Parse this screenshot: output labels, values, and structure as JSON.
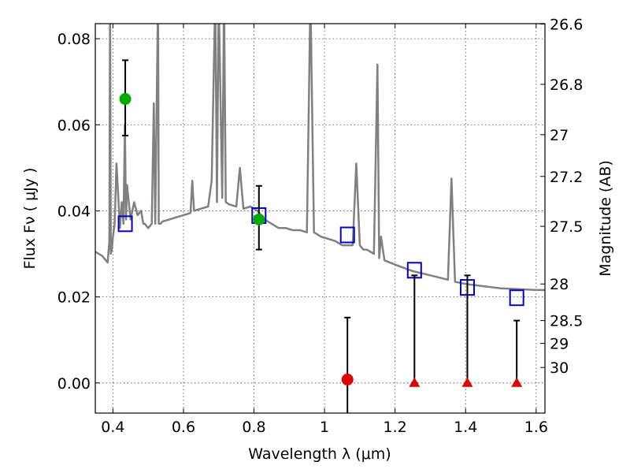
{
  "chart_data": {
    "type": "scatter",
    "title": "",
    "xlabel": "Wavelength  λ (μm)",
    "ylabel": "Flux  Fν  ( μJy )",
    "y2label": "Magnitude (AB)",
    "xlim": [
      0.35,
      1.625
    ],
    "ylim": [
      -0.007,
      0.0835
    ],
    "x_ticks": [
      0.4,
      0.6,
      0.8,
      1.0,
      1.2,
      1.4,
      1.6
    ],
    "x_tick_labels": [
      "0.4",
      "0.6",
      "0.8",
      "1",
      "1.2",
      "1.4",
      "1.6"
    ],
    "y_ticks": [
      0.0,
      0.02,
      0.04,
      0.06,
      0.08
    ],
    "y_tick_labels": [
      "0.00",
      "0.02",
      "0.04",
      "0.06",
      "0.08"
    ],
    "y2_ticks": [
      {
        "label": "26.6",
        "flux": 0.0834
      },
      {
        "label": "26.8",
        "flux": 0.0694
      },
      {
        "label": "27",
        "flux": 0.0577
      },
      {
        "label": "27.2",
        "flux": 0.048
      },
      {
        "label": "27.5",
        "flux": 0.0364
      },
      {
        "label": "28",
        "flux": 0.023
      },
      {
        "label": "28.5",
        "flux": 0.0145
      },
      {
        "label": "29",
        "flux": 0.0092
      },
      {
        "label": "30",
        "flux": 0.0036
      }
    ],
    "grid": true,
    "colors": {
      "model": "#808080",
      "model_photometry": "#0000cc",
      "detection": "#00aa00",
      "weak_detection": "#e00000",
      "upper_limit": "#e00000",
      "errorbar": "#000000"
    },
    "series": [
      {
        "name": "",
        "kind": "model_spectrum",
        "x": [
          0.35,
          0.37,
          0.385,
          0.39,
          0.392,
          0.394,
          0.397,
          0.4,
          0.405,
          0.41,
          0.42,
          0.425,
          0.43,
          0.434,
          0.437,
          0.44,
          0.45,
          0.46,
          0.47,
          0.48,
          0.486,
          0.49,
          0.5,
          0.51,
          0.516,
          0.52,
          0.528,
          0.53,
          0.535,
          0.54,
          0.56,
          0.58,
          0.6,
          0.62,
          0.625,
          0.63,
          0.65,
          0.67,
          0.68,
          0.69,
          0.695,
          0.7,
          0.71,
          0.715,
          0.72,
          0.73,
          0.75,
          0.76,
          0.77,
          0.79,
          0.81,
          0.83,
          0.85,
          0.87,
          0.89,
          0.91,
          0.93,
          0.95,
          0.96,
          0.97,
          0.99,
          1.01,
          1.03,
          1.05,
          1.08,
          1.09,
          1.1,
          1.11,
          1.12,
          1.14,
          1.15,
          1.155,
          1.16,
          1.17,
          1.2,
          1.25,
          1.3,
          1.35,
          1.36,
          1.37,
          1.4,
          1.45,
          1.5,
          1.55,
          1.6,
          1.625
        ],
        "y": [
          0.0305,
          0.0295,
          0.028,
          0.033,
          0.09,
          0.03,
          0.031,
          0.034,
          0.037,
          0.051,
          0.036,
          0.042,
          0.037,
          0.06,
          0.038,
          0.046,
          0.038,
          0.042,
          0.039,
          0.04,
          0.037,
          0.037,
          0.036,
          0.037,
          0.065,
          0.037,
          0.09,
          0.037,
          0.037,
          0.0375,
          0.038,
          0.0385,
          0.039,
          0.0395,
          0.047,
          0.04,
          0.0405,
          0.041,
          0.047,
          0.09,
          0.042,
          0.09,
          0.043,
          0.09,
          0.042,
          0.0415,
          0.041,
          0.05,
          0.0405,
          0.041,
          0.04,
          0.038,
          0.037,
          0.036,
          0.036,
          0.0355,
          0.0355,
          0.035,
          0.09,
          0.035,
          0.034,
          0.0335,
          0.033,
          0.032,
          0.032,
          0.051,
          0.032,
          0.031,
          0.031,
          0.03,
          0.074,
          0.029,
          0.034,
          0.0285,
          0.0275,
          0.026,
          0.025,
          0.024,
          0.0475,
          0.0235,
          0.023,
          0.0225,
          0.022,
          0.0218,
          0.0216,
          0.0216
        ]
      },
      {
        "name": "",
        "kind": "model_photometry",
        "x": [
          0.435,
          0.814,
          1.065,
          1.255,
          1.405,
          1.545
        ],
        "y": [
          0.037,
          0.0389,
          0.0344,
          0.0262,
          0.0222,
          0.0198
        ]
      },
      {
        "name": "",
        "kind": "detection",
        "x": [
          0.435,
          0.814
        ],
        "y": [
          0.066,
          0.038
        ],
        "yerr_low": [
          0.0575,
          0.031
        ],
        "yerr_high": [
          0.075,
          0.0458
        ]
      },
      {
        "name": "",
        "kind": "weak_detection",
        "x": [
          1.065
        ],
        "y": [
          0.0008
        ],
        "yerr_low": [
          -0.009
        ],
        "yerr_high": [
          0.0152
        ]
      },
      {
        "name": "",
        "kind": "upper_limit",
        "x": [
          1.255,
          1.405,
          1.545
        ],
        "y": [
          0.0,
          0.0,
          0.0
        ],
        "yerr_high": [
          0.025,
          0.025,
          0.0145
        ]
      }
    ]
  }
}
